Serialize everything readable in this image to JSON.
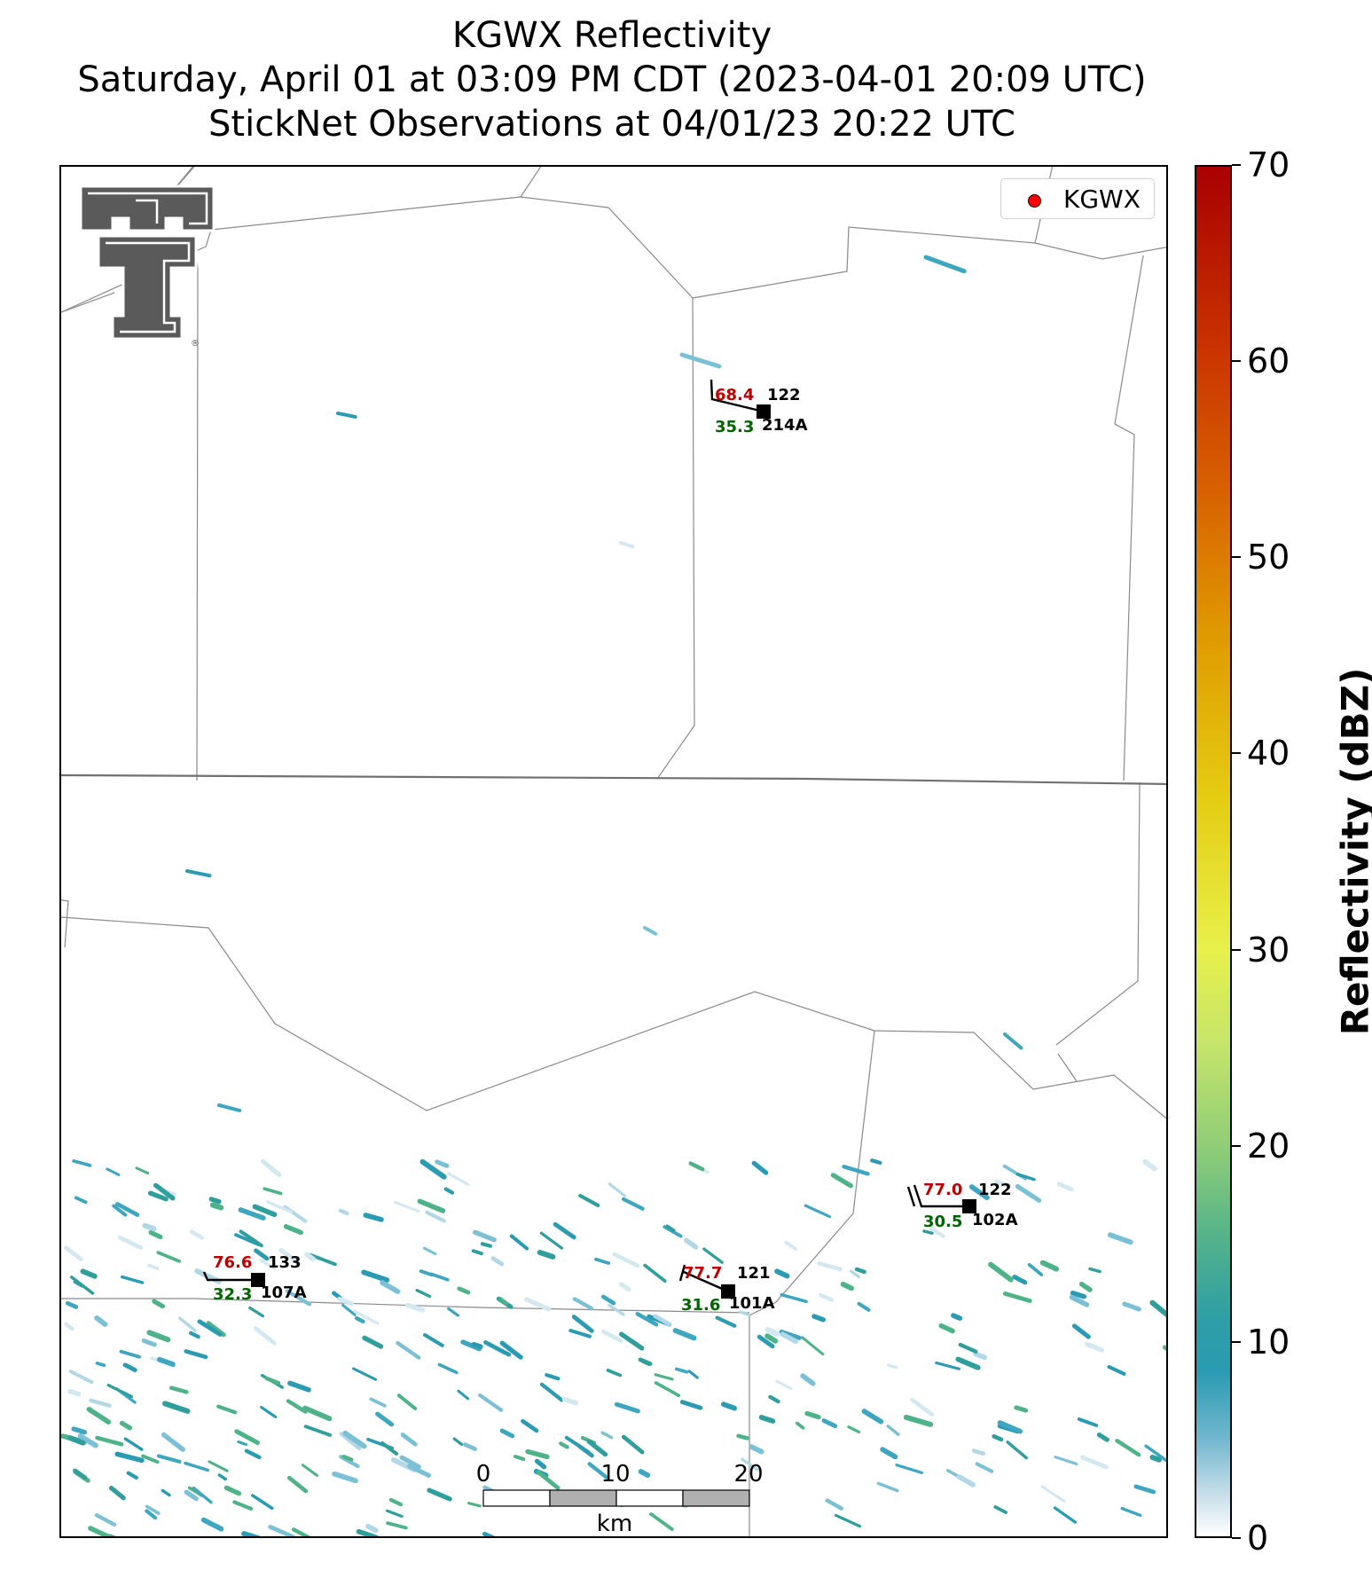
{
  "title_lines": [
    "KGWX Reflectivity",
    "Saturday, April 01 at 03:09 PM CDT (2023-04-01 20:09 UTC)",
    "StickNet Observations at 04/01/23 20:22 UTC"
  ],
  "legend": {
    "label": "KGWX",
    "marker_color": "#ff0000"
  },
  "colorbar": {
    "label": "Reflectivity (dBZ)",
    "ticks": [
      "0",
      "10",
      "20",
      "30",
      "40",
      "50",
      "60",
      "70"
    ],
    "range": [
      0,
      70
    ],
    "colors": [
      "#ffffff",
      "#2a9bb2",
      "#8ccc78",
      "#e8f04a",
      "#e4cc12",
      "#d86300",
      "#c93200",
      "#a90000"
    ]
  },
  "scale_bar": {
    "ticks": [
      "0",
      "10",
      "20"
    ],
    "unit": "km"
  },
  "logo": {
    "name": "Texas Tech Double T"
  },
  "chart_data": {
    "type": "map",
    "stations": [
      {
        "id": "214A",
        "temperature": "68.4",
        "dewpoint": "35.3",
        "value": "122"
      },
      {
        "id": "107A",
        "temperature": "76.6",
        "dewpoint": "32.3",
        "value": "133"
      },
      {
        "id": "101A",
        "temperature": "77.7",
        "dewpoint": "31.6",
        "value": "121"
      },
      {
        "id": "102A",
        "temperature": "77.0",
        "dewpoint": "30.5",
        "value": "122"
      }
    ]
  }
}
